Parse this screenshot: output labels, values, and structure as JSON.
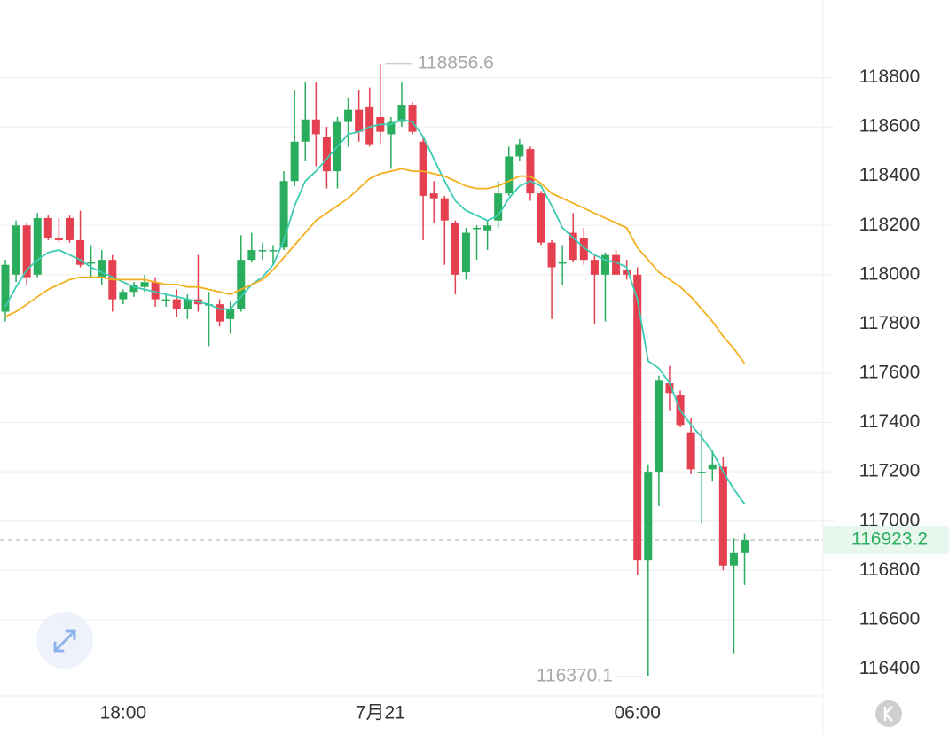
{
  "chart_data": {
    "type": "candlestick",
    "categories": [
      null,
      null,
      null,
      null,
      null,
      null,
      null,
      null,
      null,
      null,
      null,
      "18:00",
      null,
      null,
      null,
      null,
      null,
      null,
      null,
      null,
      null,
      null,
      null,
      null,
      null,
      null,
      null,
      null,
      null,
      null,
      null,
      null,
      null,
      null,
      null,
      "7月21",
      null,
      null,
      null,
      null,
      null,
      null,
      null,
      null,
      null,
      null,
      null,
      null,
      null,
      null,
      null,
      null,
      null,
      null,
      null,
      null,
      null,
      null,
      null,
      "06:00",
      null,
      null,
      null,
      null,
      null,
      null,
      null,
      null,
      null,
      null
    ],
    "open": [
      117850,
      118000,
      118200,
      118000,
      118230,
      118150,
      118230,
      118140,
      118050,
      117990,
      118060,
      117900,
      117930,
      117950,
      117970,
      117900,
      117900,
      117860,
      117900,
      117880,
      117880,
      117820,
      117860,
      118060,
      118100,
      118100,
      118110,
      118380,
      118540,
      118630,
      118560,
      118420,
      118620,
      118670,
      118680,
      118640,
      118570,
      118620,
      118690,
      118540,
      118330,
      118310,
      118210,
      118010,
      118190,
      118180,
      118220,
      118330,
      118480,
      118510,
      118330,
      118130,
      118050,
      118170,
      118150,
      118060,
      118000,
      118080,
      118020,
      118000,
      116840,
      117200,
      117560,
      117510,
      117360,
      117200,
      117210,
      117220,
      116820,
      116870
    ],
    "high": [
      118060,
      118220,
      118210,
      118250,
      118240,
      118230,
      118240,
      118260,
      118120,
      118100,
      118080,
      117940,
      117970,
      118000,
      117990,
      117920,
      117940,
      117920,
      118080,
      117930,
      117900,
      117890,
      118160,
      118170,
      118130,
      118120,
      118420,
      118750,
      118780,
      118780,
      118600,
      118640,
      118720,
      118750,
      118760,
      118856.6,
      118640,
      118780,
      118700,
      118560,
      118380,
      118320,
      118220,
      118190,
      118200,
      118220,
      118380,
      118520,
      118550,
      118520,
      118340,
      118140,
      118120,
      118250,
      118190,
      118080,
      118090,
      118100,
      118060,
      118030,
      117230,
      117590,
      117630,
      117530,
      117420,
      117370,
      117290,
      117260,
      116930,
      116950
    ],
    "low": [
      117810,
      117970,
      117960,
      117990,
      118140,
      118130,
      118130,
      118030,
      117990,
      117960,
      117850,
      117880,
      117910,
      117930,
      117870,
      117870,
      117830,
      117820,
      117850,
      117710,
      117790,
      117760,
      117850,
      118050,
      118060,
      118040,
      118100,
      118360,
      118460,
      118440,
      118350,
      118350,
      118520,
      118540,
      118520,
      118530,
      118430,
      118600,
      118570,
      118140,
      118210,
      118040,
      117920,
      117980,
      118060,
      118100,
      118190,
      118320,
      118460,
      118300,
      118120,
      117820,
      117960,
      118050,
      118040,
      117800,
      117810,
      118000,
      117980,
      116780,
      116370.1,
      117060,
      117450,
      117380,
      117190,
      116990,
      117160,
      116800,
      116460,
      116740
    ],
    "close": [
      118040,
      118200,
      117990,
      118230,
      118150,
      118140,
      118140,
      118040,
      118050,
      118060,
      117900,
      117930,
      117960,
      117970,
      117900,
      117900,
      117860,
      117900,
      117880,
      117880,
      117810,
      117860,
      118060,
      118100,
      118100,
      118100,
      118380,
      118540,
      118630,
      118570,
      118420,
      118620,
      118670,
      118580,
      118530,
      118580,
      118620,
      118690,
      118580,
      118320,
      118310,
      118220,
      118000,
      118170,
      118190,
      118200,
      118330,
      118480,
      118530,
      118330,
      118130,
      118030,
      118050,
      118060,
      118060,
      118000,
      118080,
      118000,
      118000,
      116840,
      117200,
      117570,
      117520,
      117390,
      117210,
      117200,
      117230,
      116820,
      116870,
      116923.2
    ],
    "up_color": "#2aae5e",
    "down_color": "#e5404f",
    "series": [
      {
        "color": "#3ccbb2",
        "values": [
          117870,
          117950,
          118020,
          118060,
          118090,
          118100,
          118080,
          118060,
          118030,
          118010,
          117990,
          117970,
          117950,
          117940,
          117930,
          117920,
          117910,
          117900,
          117890,
          117880,
          117860,
          117860,
          117910,
          117960,
          117990,
          118040,
          118140,
          118280,
          118380,
          118420,
          118470,
          118520,
          118570,
          118580,
          118600,
          118610,
          118610,
          118630,
          118620,
          118560,
          118470,
          118380,
          118300,
          118260,
          118240,
          118220,
          118240,
          118310,
          118360,
          118380,
          118360,
          118280,
          118190,
          118150,
          118110,
          118080,
          118060,
          118050,
          118030,
          117900,
          117650,
          117620,
          117560,
          117450,
          117390,
          117340,
          117280,
          117200,
          117130,
          117070
        ]
      },
      {
        "color": "#f2b01e",
        "values": [
          117830,
          117850,
          117880,
          117910,
          117940,
          117960,
          117980,
          117990,
          117990,
          117990,
          117980,
          117980,
          117980,
          117980,
          117970,
          117960,
          117960,
          117950,
          117950,
          117940,
          117930,
          117920,
          117940,
          117960,
          117980,
          118020,
          118070,
          118120,
          118170,
          118220,
          118250,
          118280,
          118310,
          118350,
          118390,
          118410,
          118420,
          118430,
          118420,
          118420,
          118410,
          118400,
          118380,
          118360,
          118350,
          118350,
          118360,
          118380,
          118400,
          118400,
          118370,
          118330,
          118310,
          118290,
          118270,
          118250,
          118230,
          118210,
          118190,
          118110,
          118060,
          118010,
          117980,
          117950,
          117910,
          117860,
          117810,
          117750,
          117700,
          117640
        ]
      }
    ],
    "ylim": [
      116290,
      119115
    ],
    "yticks": [
      116400,
      116600,
      116800,
      117000,
      117200,
      117400,
      117600,
      117800,
      118000,
      118200,
      118400,
      118600,
      118800
    ],
    "grid": true,
    "high_label": 118856.6,
    "low_label": 116370.1,
    "last_price": 116923.2
  }
}
